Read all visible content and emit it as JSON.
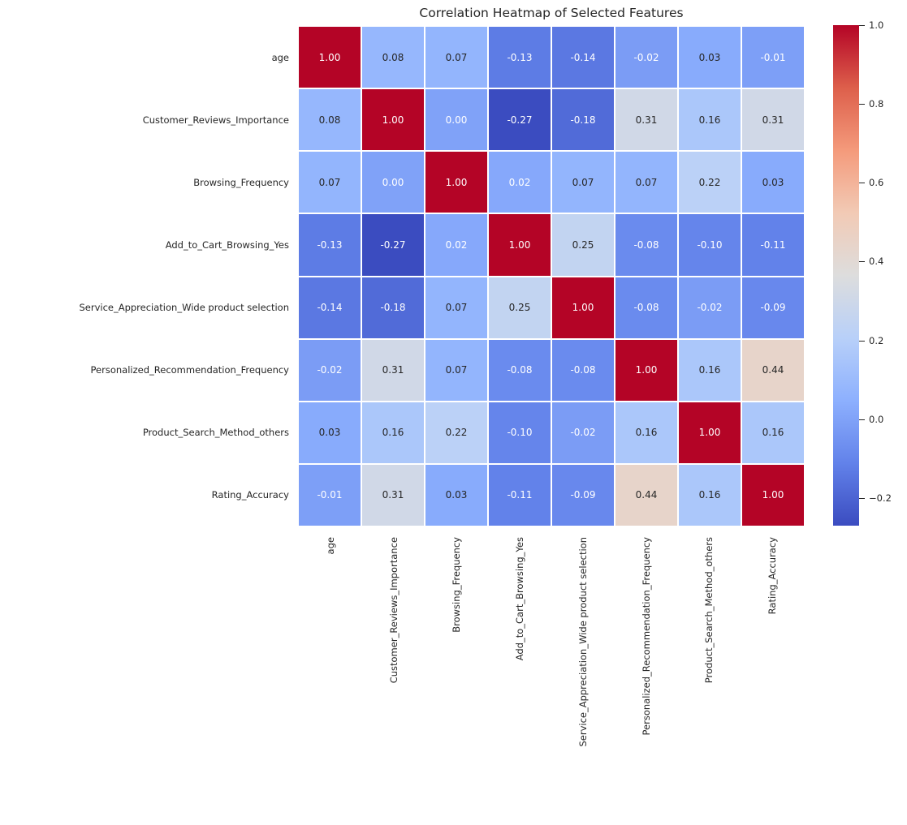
{
  "chart_data": {
    "type": "heatmap",
    "title": "Correlation Heatmap of Selected Features",
    "features": [
      "age",
      "Customer_Reviews_Importance",
      "Browsing_Frequency",
      "Add_to_Cart_Browsing_Yes",
      "Service_Appreciation_Wide product selection",
      "Personalized_Recommendation_Frequency",
      "Product_Search_Method_others",
      "Rating_Accuracy"
    ],
    "matrix": [
      [
        1.0,
        0.08,
        0.07,
        -0.13,
        -0.14,
        -0.02,
        0.03,
        -0.01
      ],
      [
        0.08,
        1.0,
        0.0,
        -0.27,
        -0.18,
        0.31,
        0.16,
        0.31
      ],
      [
        0.07,
        0.0,
        1.0,
        0.02,
        0.07,
        0.07,
        0.22,
        0.03
      ],
      [
        -0.13,
        -0.27,
        0.02,
        1.0,
        0.25,
        -0.08,
        -0.1,
        -0.11
      ],
      [
        -0.14,
        -0.18,
        0.07,
        0.25,
        1.0,
        -0.08,
        -0.02,
        -0.09
      ],
      [
        -0.02,
        0.31,
        0.07,
        -0.08,
        -0.08,
        1.0,
        0.16,
        0.44
      ],
      [
        0.03,
        0.16,
        0.22,
        -0.1,
        -0.02,
        0.16,
        1.0,
        0.16
      ],
      [
        -0.01,
        0.31,
        0.03,
        -0.11,
        -0.09,
        0.44,
        0.16,
        1.0
      ]
    ],
    "annotation_decimals": 2,
    "colormap": "coolwarm",
    "vmin": -0.27,
    "vmax": 1.0,
    "colormap_anchors": [
      {
        "t": 0.0,
        "color": "#3b4cc0"
      },
      {
        "t": 0.125,
        "color": "#6282ea"
      },
      {
        "t": 0.25,
        "color": "#8db0fe"
      },
      {
        "t": 0.375,
        "color": "#b8d0f9"
      },
      {
        "t": 0.5,
        "color": "#dddddd"
      },
      {
        "t": 0.625,
        "color": "#f2cab5"
      },
      {
        "t": 0.75,
        "color": "#f49a7b"
      },
      {
        "t": 0.875,
        "color": "#dd5f4b"
      },
      {
        "t": 1.0,
        "color": "#b40426"
      }
    ],
    "colorbar_ticks": [
      {
        "value": 1.0,
        "label": "1.0"
      },
      {
        "value": 0.8,
        "label": "0.8"
      },
      {
        "value": 0.6,
        "label": "0.6"
      },
      {
        "value": 0.4,
        "label": "0.4"
      },
      {
        "value": 0.2,
        "label": "0.2"
      },
      {
        "value": 0.0,
        "label": "0.0"
      },
      {
        "value": -0.2,
        "label": "−0.2"
      }
    ],
    "annotation_text_colors": {
      "light": "#ffffff",
      "dark": "#262626"
    },
    "luminance_threshold": 0.408,
    "grid_line_color": "#ffffff",
    "background_color": "#ffffff",
    "legend_position": "right-colorbar",
    "grid": false
  }
}
